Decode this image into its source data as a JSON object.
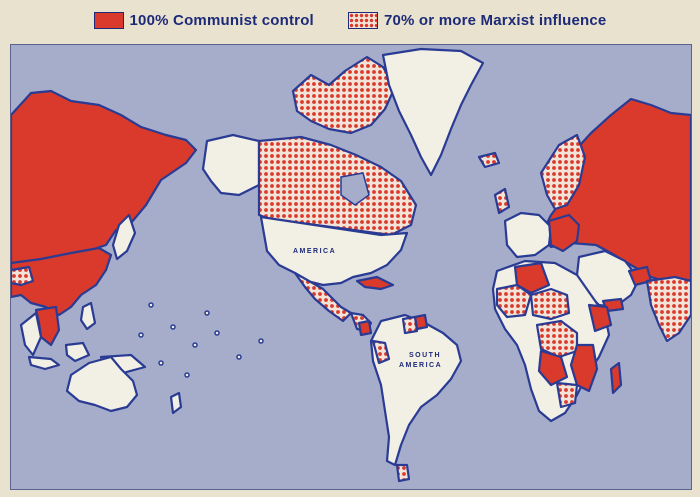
{
  "legend": {
    "communist_label": "100% Communist control",
    "marxist_label": "70% or more Marxist influence"
  },
  "map": {
    "labels": {
      "north_america": "AMERICA",
      "south_america_top": "SOUTH",
      "south_america_bottom": "AMERICA"
    }
  },
  "colors": {
    "ocean": "#a6adcb",
    "communist": "#d93a2b",
    "marxist_hatch_bg": "#f3e4d9",
    "uncolored_land": "#f2efe4",
    "coastline": "#2a3b94",
    "paper": "#e9e2cf"
  }
}
